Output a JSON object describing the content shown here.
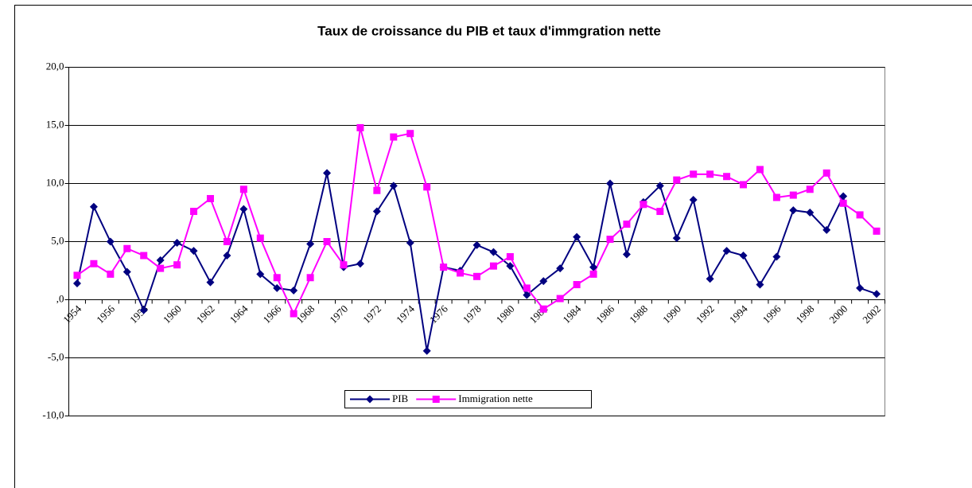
{
  "chart_data": {
    "type": "line",
    "title": "Taux de croissance du PIB et taux d'immgration nette",
    "categories": [
      "1954",
      null,
      "1956",
      null,
      "1958",
      null,
      "1960",
      null,
      "1962",
      null,
      "1964",
      null,
      "1966",
      null,
      "1968",
      null,
      "1970",
      null,
      "1972",
      null,
      "1974",
      null,
      "1976",
      null,
      "1978",
      null,
      "1980",
      null,
      "1982",
      null,
      "1984",
      null,
      "1986",
      null,
      "1988",
      null,
      "1990",
      null,
      "1992",
      null,
      "1994",
      null,
      "1996",
      null,
      "1998",
      null,
      "2000",
      null,
      "2002"
    ],
    "series": [
      {
        "name": "PIB",
        "color": "#000080",
        "marker": "diamond",
        "values": [
          1.4,
          8.0,
          5.0,
          2.4,
          -0.9,
          3.4,
          4.9,
          4.2,
          1.5,
          3.8,
          7.8,
          2.2,
          1.0,
          0.8,
          4.8,
          10.9,
          2.8,
          3.1,
          7.6,
          9.8,
          4.9,
          -4.4,
          2.8,
          2.5,
          4.7,
          4.1,
          2.9,
          0.4,
          1.6,
          2.7,
          5.4,
          2.8,
          10.0,
          3.9,
          8.4,
          9.8,
          5.3,
          8.6,
          1.8,
          4.2,
          3.8,
          1.3,
          3.7,
          7.7,
          7.5,
          6.0,
          8.9,
          1.0,
          0.5
        ]
      },
      {
        "name": "Immigration nette",
        "color": "#ff00ff",
        "marker": "square",
        "values": [
          2.1,
          3.1,
          2.2,
          4.4,
          3.8,
          2.7,
          3.0,
          7.6,
          8.7,
          5.0,
          9.5,
          5.3,
          1.9,
          -1.2,
          1.9,
          5.0,
          3.0,
          14.8,
          9.4,
          14.0,
          14.3,
          9.7,
          2.8,
          2.3,
          2.0,
          2.9,
          3.7,
          1.0,
          -0.8,
          0.1,
          1.3,
          2.2,
          5.2,
          6.5,
          8.2,
          7.6,
          10.3,
          10.8,
          10.8,
          10.6,
          9.9,
          11.2,
          8.8,
          9.0,
          9.5,
          10.9,
          8.3,
          7.3,
          5.9
        ]
      }
    ],
    "ylim": [
      -10,
      20
    ],
    "yticks": [
      {
        "value": 20,
        "label": "20,0"
      },
      {
        "value": 15,
        "label": "15,0"
      },
      {
        "value": 10,
        "label": "10,0"
      },
      {
        "value": 5,
        "label": "5,0"
      },
      {
        "value": 0,
        "label": ",0"
      },
      {
        "value": -5,
        "label": "-5,0"
      },
      {
        "value": -10,
        "label": "-10,0"
      }
    ],
    "grid": true,
    "legend": "bottom"
  }
}
